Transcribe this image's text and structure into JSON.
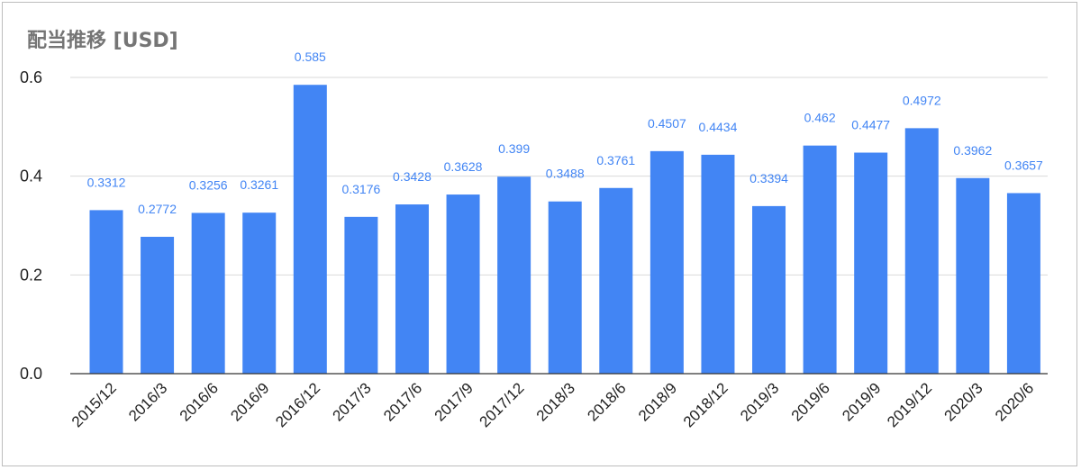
{
  "chart_data": {
    "type": "bar",
    "title": "配当推移 [USD]",
    "categories": [
      "2015/12",
      "2016/3",
      "2016/6",
      "2016/9",
      "2016/12",
      "2017/3",
      "2017/6",
      "2017/9",
      "2017/12",
      "2018/3",
      "2018/6",
      "2018/9",
      "2018/12",
      "2019/3",
      "2019/6",
      "2019/9",
      "2019/12",
      "2020/3",
      "2020/6"
    ],
    "values": [
      0.3312,
      0.2772,
      0.3256,
      0.3261,
      0.585,
      0.3176,
      0.3428,
      0.3628,
      0.399,
      0.3488,
      0.3761,
      0.4507,
      0.4434,
      0.3394,
      0.462,
      0.4477,
      0.4972,
      0.3962,
      0.3657
    ],
    "data_labels": [
      "0.3312",
      "0.2772",
      "0.3256",
      "0.3261",
      "0.585",
      "0.3176",
      "0.3428",
      "0.3628",
      "0.399",
      "0.3488",
      "0.3761",
      "0.4507",
      "0.4434",
      "0.3394",
      "0.462",
      "0.4477",
      "0.4972",
      "0.3962",
      "0.3657"
    ],
    "yticks": [
      "0.0",
      "0.2",
      "0.4",
      "0.6"
    ],
    "ytick_values": [
      0,
      0.2,
      0.4,
      0.6
    ],
    "ylim": [
      0,
      0.6
    ],
    "grid": true,
    "legend": "none",
    "bar_color": "#4285f4",
    "label_color": "#4285f4",
    "title_color": "#757575"
  }
}
